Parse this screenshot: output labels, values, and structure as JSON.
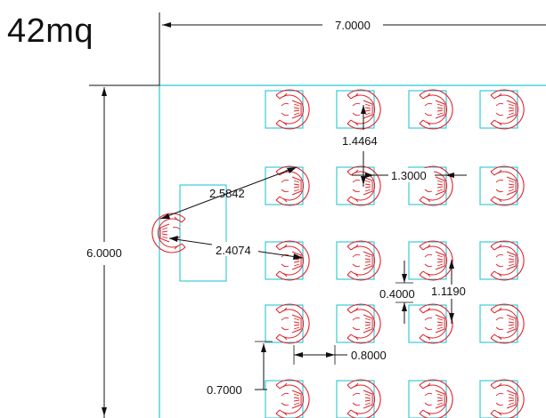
{
  "title": "42mq",
  "dimensions": {
    "overall_width": "7.0000",
    "overall_height": "6.0000",
    "radius_a": "2.5842",
    "radius_b": "2.4074",
    "row_gap": "1.4464",
    "col_gap": "1.3000",
    "seat_depth": "0.4000",
    "chair_width": "1.1190",
    "aisle_width": "0.8000",
    "bottom_offset": "0.7000"
  },
  "colors": {
    "outline": "#27c7d6",
    "chairs": "#e0222a",
    "dimension_lines": "#111111"
  }
}
